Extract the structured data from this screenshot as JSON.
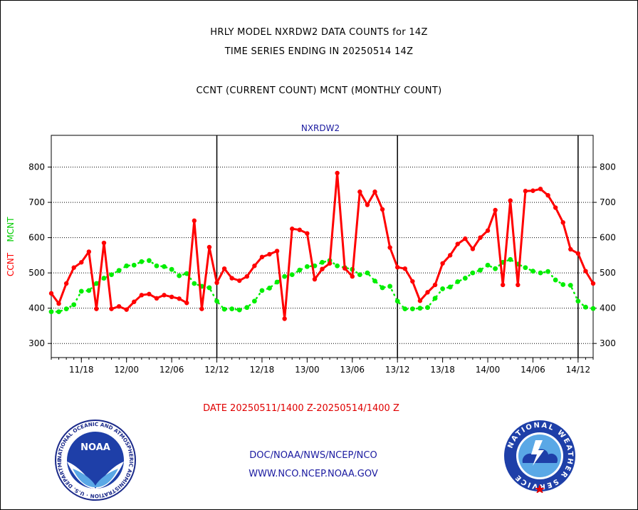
{
  "header": {
    "line1": "HRLY MODEL NXRDW2 DATA COUNTS for 14Z",
    "line2": "TIME SERIES ENDING IN 20250514 14Z",
    "line3": "CCNT (CURRENT COUNT) MCNT (MONTHLY COUNT)"
  },
  "chart_data": {
    "type": "line",
    "title": "NXRDW2",
    "ylabel_ccnt": "CCNT",
    "ylabel_mcnt": "MCNT",
    "ylim": [
      260,
      890
    ],
    "yticks": [
      300,
      400,
      500,
      600,
      700,
      800
    ],
    "xlim": [
      0,
      72
    ],
    "xtick_labels": [
      "11/18",
      "12/00",
      "12/06",
      "12/12",
      "12/18",
      "13/00",
      "13/06",
      "13/12",
      "13/18",
      "14/00",
      "14/06",
      "14/12"
    ],
    "xtick_hours": [
      4,
      10,
      16,
      22,
      28,
      34,
      40,
      46,
      52,
      58,
      64,
      70
    ],
    "day_boundaries_hours": [
      22,
      46,
      70
    ],
    "grid": true,
    "colors": {
      "ccnt": "#ff0000",
      "mcnt": "#00ee00",
      "title": "#1a1aa0"
    },
    "series": [
      {
        "name": "CCNT",
        "values": [
          442,
          413,
          470,
          515,
          530,
          560,
          398,
          585,
          398,
          405,
          396,
          418,
          437,
          440,
          428,
          437,
          432,
          427,
          415,
          648,
          398,
          573,
          472,
          512,
          485,
          478,
          490,
          520,
          545,
          553,
          562,
          370,
          625,
          622,
          612,
          482,
          511,
          527,
          783,
          513,
          490,
          730,
          693,
          730,
          680,
          572,
          516,
          512,
          476,
          421,
          445,
          466,
          527,
          550,
          582,
          597,
          568,
          600,
          620,
          678,
          466,
          705,
          466,
          732,
          733,
          738,
          720,
          685,
          643,
          567,
          555,
          505,
          470
        ]
      },
      {
        "name": "MCNT",
        "values": [
          390,
          390,
          398,
          410,
          448,
          450,
          470,
          485,
          495,
          507,
          520,
          522,
          532,
          535,
          520,
          518,
          510,
          492,
          498,
          470,
          462,
          458,
          420,
          397,
          398,
          395,
          402,
          420,
          450,
          457,
          474,
          490,
          495,
          508,
          518,
          520,
          530,
          535,
          520,
          515,
          510,
          495,
          500,
          477,
          458,
          462,
          420,
          398,
          398,
          400,
          402,
          428,
          455,
          460,
          475,
          485,
          500,
          508,
          522,
          512,
          530,
          538,
          525,
          515,
          505,
          500,
          504,
          480,
          467,
          465,
          420,
          403,
          399
        ]
      }
    ]
  },
  "footer": {
    "date_range": "DATE 20250511/1400 Z-20250514/1400 Z",
    "org_line1": "DOC/NOAA/NWS/NCEP/NCO",
    "org_line2": "WWW.NCO.NCEP.NOAA.GOV"
  },
  "logos": {
    "left_icon": "noaa-logo-icon",
    "left_word": "NOAA",
    "left_ring_text": "NATIONAL OCEANIC AND ATMOSPHERIC ADMINISTRATION · U.S. DEPARTMENT OF COMMERCE",
    "right_icon": "nws-logo-icon",
    "right_ring_text": "NATIONAL WEATHER SERVICE"
  }
}
